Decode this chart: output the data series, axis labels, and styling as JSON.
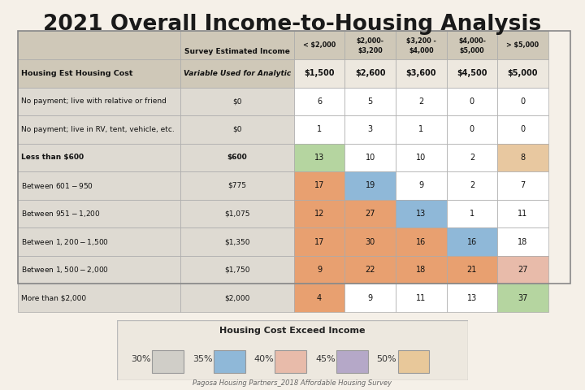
{
  "title": "2021 Overall Income-to-Housing Analysis",
  "background_color": "#f5f0e8",
  "col_headers_l1": [
    "< $2,000",
    "$2,000-",
    "$3,200 -",
    "$4,000-",
    "> $5,000"
  ],
  "col_headers_l2": [
    "",
    "$3,200",
    "$4,000",
    "$5,000",
    ""
  ],
  "row_labels": [
    "Housing Est Housing Cost",
    "No payment; live with relative or friend",
    "No payment; live in RV, tent, vehicle, etc.",
    "Less than $600",
    "Between $601 - $950",
    "Between $951 - $1,200",
    "Between $1,200 - $1,500",
    "Between $1,500 - $2,000",
    "More than $2,000"
  ],
  "col2_labels": [
    "Variable Used for Analytic",
    "$0",
    "$0",
    "$600",
    "$775",
    "$1,075",
    "$1,350",
    "$1,750",
    "$2,000"
  ],
  "data": [
    [
      "$1,500",
      "$2,600",
      "$3,600",
      "$4,500",
      "$5,000"
    ],
    [
      "6",
      "5",
      "2",
      "0",
      "0"
    ],
    [
      "1",
      "3",
      "1",
      "0",
      "0"
    ],
    [
      "13",
      "10",
      "10",
      "2",
      "8"
    ],
    [
      "17",
      "19",
      "9",
      "2",
      "7"
    ],
    [
      "12",
      "27",
      "13",
      "1",
      "11"
    ],
    [
      "17",
      "30",
      "16",
      "16",
      "18"
    ],
    [
      "9",
      "22",
      "18",
      "21",
      "27"
    ],
    [
      "4",
      "9",
      "11",
      "13",
      "37"
    ]
  ],
  "cell_colors": [
    [
      "#ede8df",
      "#ede8df",
      "#ede8df",
      "#ede8df",
      "#ede8df"
    ],
    [
      "#ffffff",
      "#ffffff",
      "#ffffff",
      "#ffffff",
      "#ffffff"
    ],
    [
      "#ffffff",
      "#ffffff",
      "#ffffff",
      "#ffffff",
      "#ffffff"
    ],
    [
      "#b5d5a0",
      "#ffffff",
      "#ffffff",
      "#ffffff",
      "#e8c8a0"
    ],
    [
      "#e8a070",
      "#8fb8d8",
      "#ffffff",
      "#ffffff",
      "#ffffff"
    ],
    [
      "#e8a070",
      "#e8a070",
      "#8fb8d8",
      "#ffffff",
      "#ffffff"
    ],
    [
      "#e8a070",
      "#e8a070",
      "#e8a070",
      "#8fb8d8",
      "#ffffff"
    ],
    [
      "#e8a070",
      "#e8a070",
      "#e8a070",
      "#e8a070",
      "#e8bbaa"
    ],
    [
      "#e8a070",
      "#ffffff",
      "#ffffff",
      "#ffffff",
      "#b5d5a0"
    ]
  ],
  "row_bold": [
    true,
    false,
    false,
    true,
    false,
    false,
    false,
    false,
    false
  ],
  "row_italic_col2": [
    true,
    false,
    false,
    false,
    false,
    false,
    false,
    false,
    false
  ],
  "label_bg_colors": [
    "#cfc8b8",
    "#dedad2",
    "#dedad2",
    "#dedad2",
    "#dedad2",
    "#dedad2",
    "#dedad2",
    "#dedad2",
    "#dedad2"
  ],
  "header_bg": "#cfc8b8",
  "legend_title": "Housing Cost Exceed Income",
  "legend_pcts": [
    "30%",
    "35%",
    "40%",
    "45%",
    "50%"
  ],
  "legend_colors": [
    "#d0cec8",
    "#8fb8d8",
    "#e8bbaa",
    "#b5a8c8",
    "#e8c89a"
  ],
  "footnote": "Pagosa Housing Partners_2018 Affordable Housing Survey"
}
